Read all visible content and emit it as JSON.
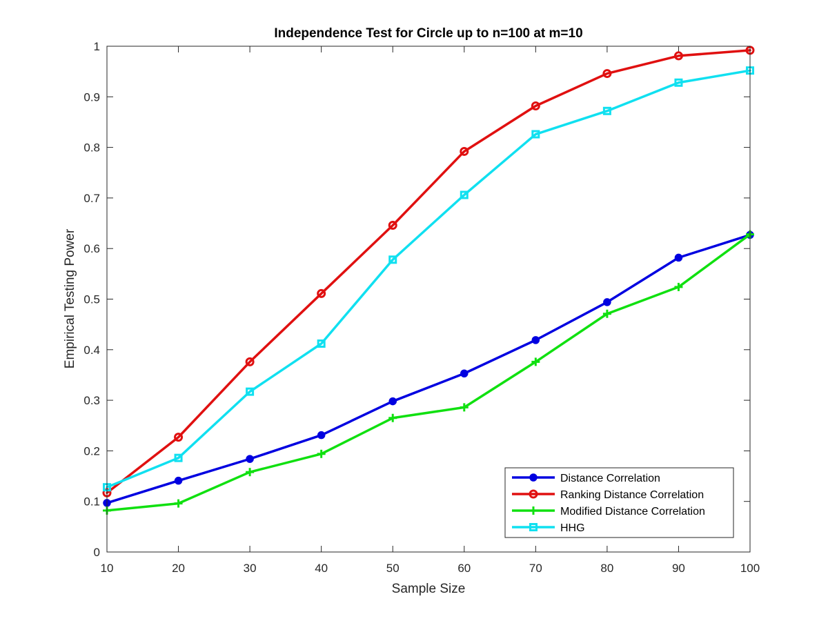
{
  "chart_data": {
    "type": "line",
    "title": "Independence Test for Circle up to n=100 at m=10",
    "xlabel": "Sample Size",
    "ylabel": "Empirical Testing Power",
    "xlim": [
      10,
      100
    ],
    "ylim": [
      0,
      1
    ],
    "xticks": [
      "10",
      "20",
      "30",
      "40",
      "50",
      "60",
      "70",
      "80",
      "90",
      "100"
    ],
    "yticks": [
      "0",
      "0.1",
      "0.2",
      "0.3",
      "0.4",
      "0.5",
      "0.6",
      "0.7",
      "0.8",
      "0.9",
      "1"
    ],
    "grid": false,
    "legend_position": "bottom-right",
    "x": [
      10,
      20,
      30,
      40,
      50,
      60,
      70,
      80,
      90,
      100
    ],
    "series": [
      {
        "name": "Distance Correlation",
        "color": "#0000e0",
        "marker": "filled-circle",
        "values": [
          0.097,
          0.141,
          0.184,
          0.231,
          0.298,
          0.353,
          0.419,
          0.494,
          0.582,
          0.627
        ]
      },
      {
        "name": "Ranking Distance Correlation",
        "color": "#e01010",
        "marker": "open-circle",
        "values": [
          0.117,
          0.227,
          0.376,
          0.511,
          0.646,
          0.792,
          0.882,
          0.946,
          0.981,
          0.992
        ]
      },
      {
        "name": "Modified Distance Correlation",
        "color": "#10e010",
        "marker": "plus",
        "values": [
          0.082,
          0.096,
          0.158,
          0.194,
          0.265,
          0.286,
          0.376,
          0.471,
          0.524,
          0.628
        ]
      },
      {
        "name": "HHG",
        "color": "#10e0f0",
        "marker": "square",
        "values": [
          0.128,
          0.186,
          0.317,
          0.412,
          0.578,
          0.706,
          0.826,
          0.872,
          0.928,
          0.952
        ]
      }
    ]
  }
}
